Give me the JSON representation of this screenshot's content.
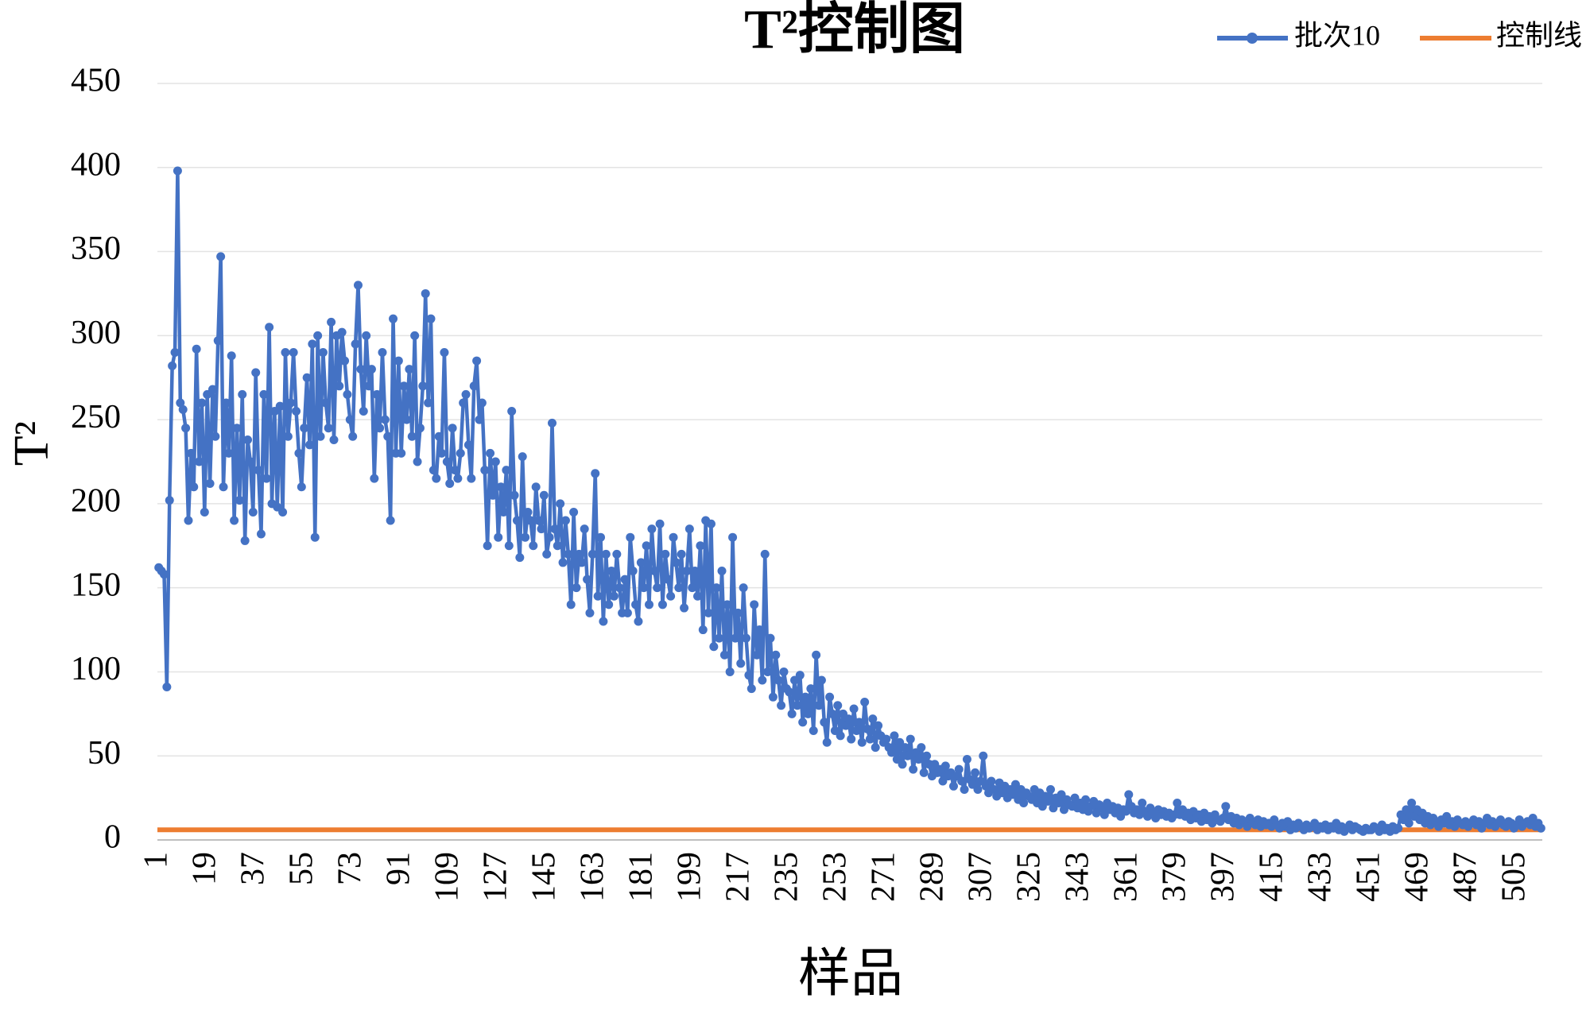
{
  "chart_data": {
    "type": "line",
    "title": "T²控制图",
    "x_label": "样品",
    "y_label": "T²",
    "ylim": [
      0,
      450
    ],
    "yticks": [
      0,
      50,
      100,
      150,
      200,
      250,
      300,
      350,
      400,
      450
    ],
    "grid": true,
    "legend": "top-right",
    "categories": [
      "1",
      null,
      null,
      null,
      null,
      null,
      null,
      null,
      null,
      null,
      null,
      null,
      null,
      null,
      null,
      null,
      null,
      null,
      "19",
      null,
      null,
      null,
      null,
      null,
      null,
      null,
      null,
      null,
      null,
      null,
      null,
      null,
      null,
      null,
      null,
      null,
      "37",
      null,
      null,
      null,
      null,
      null,
      null,
      null,
      null,
      null,
      null,
      null,
      null,
      null,
      null,
      null,
      null,
      null,
      "55",
      null,
      null,
      null,
      null,
      null,
      null,
      null,
      null,
      null,
      null,
      null,
      null,
      null,
      null,
      null,
      null,
      null,
      "73",
      null,
      null,
      null,
      null,
      null,
      null,
      null,
      null,
      null,
      null,
      null,
      null,
      null,
      null,
      null,
      null,
      null,
      "91",
      null,
      null,
      null,
      null,
      null,
      null,
      null,
      null,
      null,
      null,
      null,
      null,
      null,
      null,
      null,
      null,
      null,
      "109",
      null,
      null,
      null,
      null,
      null,
      null,
      null,
      null,
      null,
      null,
      null,
      null,
      null,
      null,
      null,
      null,
      null,
      "127",
      null,
      null,
      null,
      null,
      null,
      null,
      null,
      null,
      null,
      null,
      null,
      null,
      null,
      null,
      null,
      null,
      null,
      "145",
      null,
      null,
      null,
      null,
      null,
      null,
      null,
      null,
      null,
      null,
      null,
      null,
      null,
      null,
      null,
      null,
      null,
      "163",
      null,
      null,
      null,
      null,
      null,
      null,
      null,
      null,
      null,
      null,
      null,
      null,
      null,
      null,
      null,
      null,
      null,
      "181",
      null,
      null,
      null,
      null,
      null,
      null,
      null,
      null,
      null,
      null,
      null,
      null,
      null,
      null,
      null,
      null,
      null,
      "199",
      null,
      null,
      null,
      null,
      null,
      null,
      null,
      null,
      null,
      null,
      null,
      null,
      null,
      null,
      null,
      null,
      null,
      "217",
      null,
      null,
      null,
      null,
      null,
      null,
      null,
      null,
      null,
      null,
      null,
      null,
      null,
      null,
      null,
      null,
      null,
      "235",
      null,
      null,
      null,
      null,
      null,
      null,
      null,
      null,
      null,
      null,
      null,
      null,
      null,
      null,
      null,
      null,
      null,
      "253",
      null,
      null,
      null,
      null,
      null,
      null,
      null,
      null,
      null,
      null,
      null,
      null,
      null,
      null,
      null,
      null,
      null,
      "271",
      null,
      null,
      null,
      null,
      null,
      null,
      null,
      null,
      null,
      null,
      null,
      null,
      null,
      null,
      null,
      null,
      null,
      "289",
      null,
      null,
      null,
      null,
      null,
      null,
      null,
      null,
      null,
      null,
      null,
      null,
      null,
      null,
      null,
      null,
      null,
      "307",
      null,
      null,
      null,
      null,
      null,
      null,
      null,
      null,
      null,
      null,
      null,
      null,
      null,
      null,
      null,
      null,
      null,
      "325",
      null,
      null,
      null,
      null,
      null,
      null,
      null,
      null,
      null,
      null,
      null,
      null,
      null,
      null,
      null,
      null,
      null,
      "343",
      null,
      null,
      null,
      null,
      null,
      null,
      null,
      null,
      null,
      null,
      null,
      null,
      null,
      null,
      null,
      null,
      null,
      "361",
      null,
      null,
      null,
      null,
      null,
      null,
      null,
      null,
      null,
      null,
      null,
      null,
      null,
      null,
      null,
      null,
      null,
      "379",
      null,
      null,
      null,
      null,
      null,
      null,
      null,
      null,
      null,
      null,
      null,
      null,
      null,
      null,
      null,
      null,
      null,
      "397",
      null,
      null,
      null,
      null,
      null,
      null,
      null,
      null,
      null,
      null,
      null,
      null,
      null,
      null,
      null,
      null,
      null,
      "415",
      null,
      null,
      null,
      null,
      null,
      null,
      null,
      null,
      null,
      null,
      null,
      null,
      null,
      null,
      null,
      null,
      null,
      "433",
      null,
      null,
      null,
      null,
      null,
      null,
      null,
      null,
      null,
      null,
      null,
      null,
      null,
      null,
      null,
      null,
      null,
      "451",
      null,
      null,
      null,
      null,
      null,
      null,
      null,
      null,
      null,
      null,
      null,
      null,
      null,
      null,
      null,
      null,
      null,
      "469",
      null,
      null,
      null,
      null,
      null,
      null,
      null,
      null,
      null,
      null,
      null,
      null,
      null,
      null,
      null,
      null,
      null,
      "487",
      null,
      null,
      null,
      null,
      null,
      null,
      null,
      null,
      null,
      null,
      null,
      null,
      null,
      null,
      null,
      null,
      null,
      "505",
      null,
      null,
      null,
      null,
      null,
      null,
      null,
      null,
      null
    ],
    "series": [
      {
        "name": "批次10",
        "color": "#4472c4",
        "values": [
          162,
          160,
          158,
          91,
          202,
          282,
          290,
          398,
          260,
          256,
          245,
          190,
          230,
          210,
          292,
          225,
          260,
          195,
          265,
          212,
          268,
          240,
          297,
          347,
          210,
          260,
          230,
          288,
          190,
          245,
          202,
          265,
          178,
          238,
          225,
          195,
          278,
          220,
          182,
          265,
          215,
          305,
          200,
          255,
          198,
          258,
          195,
          290,
          240,
          260,
          290,
          255,
          230,
          210,
          245,
          275,
          235,
          295,
          180,
          300,
          240,
          290,
          260,
          245,
          308,
          238,
          300,
          270,
          302,
          285,
          265,
          250,
          240,
          295,
          330,
          280,
          255,
          300,
          270,
          280,
          215,
          265,
          245,
          290,
          250,
          240,
          190,
          310,
          230,
          285,
          230,
          270,
          250,
          280,
          240,
          300,
          225,
          245,
          270,
          325,
          260,
          310,
          220,
          215,
          240,
          230,
          290,
          225,
          212,
          245,
          220,
          215,
          230,
          260,
          265,
          235,
          215,
          270,
          285,
          250,
          260,
          220,
          175,
          230,
          205,
          225,
          180,
          210,
          195,
          220,
          175,
          255,
          205,
          190,
          168,
          228,
          180,
          195,
          190,
          175,
          210,
          190,
          185,
          205,
          170,
          180,
          248,
          185,
          175,
          200,
          165,
          190,
          170,
          140,
          195,
          150,
          170,
          165,
          185,
          155,
          135,
          170,
          218,
          145,
          180,
          130,
          170,
          140,
          160,
          145,
          170,
          150,
          135,
          155,
          135,
          180,
          160,
          140,
          130,
          165,
          150,
          175,
          140,
          185,
          160,
          150,
          188,
          140,
          170,
          155,
          145,
          180,
          165,
          150,
          170,
          138,
          160,
          185,
          150,
          160,
          145,
          175,
          125,
          190,
          135,
          188,
          115,
          150,
          120,
          160,
          110,
          140,
          100,
          180,
          120,
          135,
          105,
          150,
          120,
          98,
          90,
          140,
          110,
          125,
          95,
          170,
          100,
          120,
          85,
          110,
          95,
          80,
          100,
          90,
          88,
          75,
          95,
          80,
          98,
          70,
          85,
          75,
          90,
          65,
          110,
          80,
          95,
          70,
          58,
          85,
          75,
          65,
          80,
          62,
          75,
          68,
          72,
          60,
          78,
          65,
          70,
          58,
          82,
          66,
          60,
          72,
          55,
          68,
          62,
          58,
          60,
          55,
          52,
          62,
          48,
          58,
          45,
          55,
          50,
          60,
          42,
          52,
          48,
          55,
          40,
          50,
          45,
          38,
          45,
          40,
          42,
          35,
          44,
          38,
          40,
          32,
          38,
          42,
          35,
          30,
          48,
          36,
          33,
          40,
          30,
          35,
          50,
          32,
          28,
          35,
          30,
          26,
          34,
          28,
          32,
          25,
          30,
          27,
          33,
          24,
          30,
          22,
          28,
          26,
          24,
          30,
          22,
          28,
          20,
          26,
          23,
          30,
          19,
          25,
          22,
          27,
          18,
          24,
          21,
          20,
          25,
          19,
          22,
          18,
          24,
          17,
          20,
          23,
          16,
          21,
          19,
          15,
          22,
          18,
          20,
          16,
          19,
          14,
          18,
          17,
          27,
          20,
          16,
          18,
          15,
          22,
          17,
          14,
          19,
          16,
          13,
          18,
          15,
          17,
          14,
          16,
          13,
          15,
          22,
          15,
          18,
          14,
          16,
          12,
          17,
          13,
          15,
          11,
          16,
          12,
          14,
          10,
          15,
          12,
          11,
          13,
          20,
          12,
          14,
          10,
          13,
          9,
          12,
          11,
          8,
          13,
          10,
          9,
          12,
          8,
          11,
          9,
          10,
          8,
          12,
          9,
          7,
          10,
          8,
          11,
          6,
          9,
          7,
          10,
          8,
          6,
          9,
          7,
          8,
          10,
          6,
          8,
          7,
          9,
          6,
          8,
          7,
          10,
          6,
          8,
          5,
          7,
          9,
          6,
          8,
          7,
          6,
          5,
          7,
          6,
          6,
          8,
          7,
          5,
          9,
          6,
          7,
          5,
          8,
          6,
          7,
          15,
          12,
          18,
          10,
          22,
          14,
          18,
          12,
          16,
          10,
          14,
          9,
          13,
          11,
          8,
          12,
          10,
          14,
          9,
          11,
          8,
          12,
          10,
          9,
          11,
          8,
          10,
          12,
          9,
          11,
          7,
          10,
          13,
          9,
          11,
          8,
          10,
          12,
          9,
          8,
          11,
          10,
          7,
          9,
          12,
          8,
          10,
          11,
          9,
          13,
          8,
          10,
          7
        ]
      }
    ],
    "reference_lines": [
      {
        "name": "控制线",
        "color": "#ed7d31",
        "value": 6
      }
    ]
  }
}
